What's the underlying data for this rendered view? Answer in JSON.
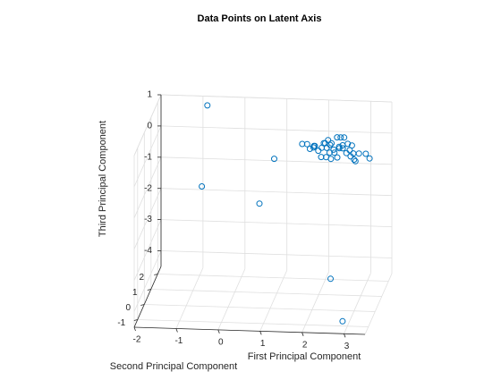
{
  "chart_data": {
    "type": "scatter3d",
    "title": "Data Points on Latent Axis",
    "xlabel": "First Principal Component",
    "ylabel": "Second Principal Component",
    "zlabel": "Third Principal Component",
    "xlim": [
      -2,
      3.5
    ],
    "ylim": [
      -1.5,
      2.5
    ],
    "zlim": [
      -4.5,
      1
    ],
    "xticks": [
      -2,
      -1,
      0,
      1,
      2,
      3
    ],
    "yticks": [
      -1,
      0,
      1,
      2
    ],
    "zticks": [
      -4,
      -3,
      -2,
      -1,
      0,
      1
    ],
    "grid": true,
    "marker": "circle",
    "series": [
      {
        "color": "#0072BD",
        "points": [
          {
            "x": -0.8,
            "y": 1.9,
            "z": 1.0
          },
          {
            "x": -0.9,
            "y": 1.7,
            "z": -1.5
          },
          {
            "x": 0.6,
            "y": 0.9,
            "z": -1.6
          },
          {
            "x": 1.0,
            "y": 0.6,
            "z": 0.0
          },
          {
            "x": 1.7,
            "y": 0.4,
            "z": 0.6
          },
          {
            "x": 1.8,
            "y": 0.5,
            "z": 0.55
          },
          {
            "x": 1.9,
            "y": 0.3,
            "z": 0.5
          },
          {
            "x": 2.0,
            "y": 0.4,
            "z": 0.55
          },
          {
            "x": 2.1,
            "y": 0.3,
            "z": 0.45
          },
          {
            "x": 2.0,
            "y": 0.2,
            "z": 0.6
          },
          {
            "x": 2.2,
            "y": 0.5,
            "z": 0.6
          },
          {
            "x": 2.3,
            "y": 0.3,
            "z": 0.55
          },
          {
            "x": 2.3,
            "y": 0.5,
            "z": 0.7
          },
          {
            "x": 2.4,
            "y": 0.4,
            "z": 0.65
          },
          {
            "x": 2.5,
            "y": 0.6,
            "z": 0.75
          },
          {
            "x": 2.5,
            "y": 0.2,
            "z": 0.45
          },
          {
            "x": 2.6,
            "y": 0.3,
            "z": 0.55
          },
          {
            "x": 2.6,
            "y": 0.5,
            "z": 0.8
          },
          {
            "x": 2.7,
            "y": 0.4,
            "z": 0.85
          },
          {
            "x": 2.7,
            "y": 0.2,
            "z": 0.6
          },
          {
            "x": 2.8,
            "y": 0.3,
            "z": 0.7
          },
          {
            "x": 2.8,
            "y": 0.1,
            "z": 0.5
          },
          {
            "x": 2.9,
            "y": 0.3,
            "z": 0.65
          },
          {
            "x": 2.9,
            "y": 0.1,
            "z": 0.4
          },
          {
            "x": 2.2,
            "y": 0.7,
            "z": 0.5
          },
          {
            "x": 2.1,
            "y": 0.8,
            "z": 0.3
          },
          {
            "x": 1.9,
            "y": 0.9,
            "z": 0.3
          },
          {
            "x": 2.3,
            "y": 0.8,
            "z": 0.4
          },
          {
            "x": 2.4,
            "y": 0.7,
            "z": 0.3
          },
          {
            "x": 2.6,
            "y": 0.8,
            "z": 0.4
          },
          {
            "x": 2.5,
            "y": 0.9,
            "z": 0.3
          },
          {
            "x": 2.8,
            "y": 0.6,
            "z": 0.35
          },
          {
            "x": 2.9,
            "y": 0.5,
            "z": 0.3
          },
          {
            "x": 3.0,
            "y": 0.2,
            "z": 0.2
          },
          {
            "x": 3.0,
            "y": 0.0,
            "z": 0.35
          },
          {
            "x": 3.1,
            "y": 0.1,
            "z": 0.5
          },
          {
            "x": 2.6,
            "y": 0.0,
            "z": 0.4
          },
          {
            "x": 2.4,
            "y": 0.1,
            "z": 0.5
          },
          {
            "x": 2.2,
            "y": 0.1,
            "z": 0.35
          },
          {
            "x": 2.3,
            "y": 0.2,
            "z": 0.3
          },
          {
            "x": 2.4,
            "y": 0.3,
            "z": 0.2
          },
          {
            "x": 3.4,
            "y": -0.2,
            "z": 0.5
          },
          {
            "x": 3.2,
            "y": 0.5,
            "z": 0.3
          },
          {
            "x": 2.6,
            "y": -1.0,
            "z": -3.0
          },
          {
            "x": 2.9,
            "y": -1.1,
            "z": -4.3
          }
        ]
      }
    ]
  }
}
